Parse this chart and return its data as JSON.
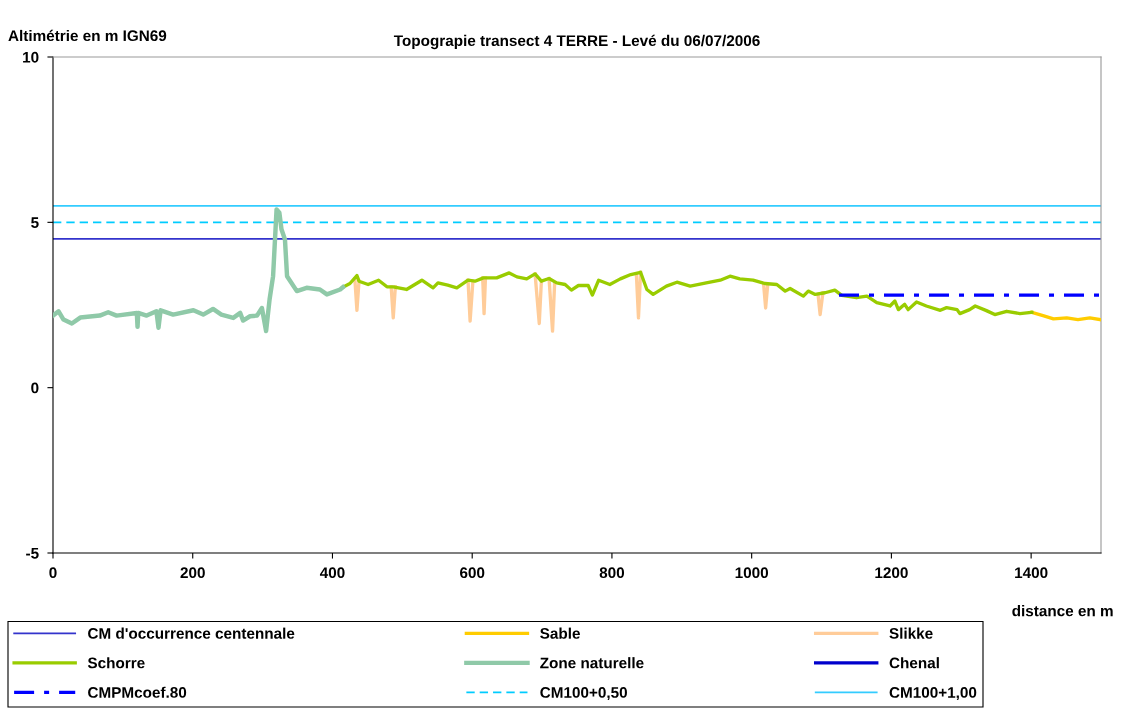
{
  "chart_data": {
    "type": "line",
    "title": "Topograpie transect 4 TERRE - Levé du 06/07/2006",
    "ylabel": "Altimétrie en m IGN69",
    "xlabel": "distance en m",
    "xlim": [
      0,
      1500
    ],
    "xticks": [
      0,
      200,
      400,
      600,
      800,
      1000,
      1200,
      1400
    ],
    "ylim": [
      -5,
      10
    ],
    "yticks": [
      -5,
      0,
      5,
      10
    ],
    "grid": false,
    "legend": "bottom",
    "series": [
      {
        "name": "Sable",
        "color": "#ffcc00",
        "x": [
          1401,
          1417,
          1432,
          1451,
          1467,
          1484,
          1498
        ],
        "values": [
          2.28,
          2.18,
          2.08,
          2.11,
          2.06,
          2.11,
          2.06
        ]
      },
      {
        "name": "Slikke",
        "color": "#ffcc99",
        "x": [
          432,
          435,
          438,
          null,
          484,
          487,
          490,
          null,
          594,
          597,
          601,
          null,
          615,
          617,
          619,
          null,
          690,
          696,
          699,
          null,
          710,
          715,
          718,
          null,
          835,
          838,
          841,
          null,
          1017,
          1020,
          1023,
          null,
          1095,
          1098,
          1102
        ],
        "values": [
          3.3,
          2.34,
          3.22,
          null,
          3.05,
          2.11,
          3.05,
          null,
          3.25,
          2.01,
          3.22,
          null,
          3.32,
          2.24,
          3.32,
          null,
          3.44,
          1.94,
          3.22,
          null,
          3.3,
          1.71,
          3.17,
          null,
          3.42,
          2.11,
          3.49,
          null,
          3.15,
          2.41,
          3.12,
          null,
          2.82,
          2.21,
          2.87
        ]
      },
      {
        "name": "Schorre",
        "color": "#99cc00",
        "x": [
          415,
          425,
          435,
          438,
          451,
          466,
          478,
          487,
          506,
          528,
          544,
          551,
          565,
          578,
          594,
          604,
          616,
          635,
          653,
          664,
          678,
          690,
          699,
          710,
          721,
          733,
          742,
          752,
          766,
          772,
          781,
          797,
          812,
          827,
          841,
          850,
          859,
          878,
          893,
          912,
          935,
          955,
          969,
          983,
          1002,
          1019,
          1036,
          1048,
          1055,
          1074,
          1081,
          1091,
          1105,
          1119,
          1129,
          1150,
          1165,
          1179,
          1198,
          1205,
          1210,
          1219,
          1224,
          1236,
          1250,
          1270,
          1279,
          1294,
          1298,
          1312,
          1320,
          1336,
          1348,
          1365,
          1384,
          1401
        ],
        "values": [
          3.04,
          3.15,
          3.39,
          3.22,
          3.12,
          3.25,
          3.05,
          3.05,
          2.97,
          3.25,
          3.02,
          3.17,
          3.1,
          3.02,
          3.25,
          3.22,
          3.32,
          3.32,
          3.47,
          3.35,
          3.29,
          3.44,
          3.22,
          3.3,
          3.17,
          3.12,
          2.95,
          3.09,
          3.09,
          2.8,
          3.25,
          3.12,
          3.29,
          3.42,
          3.49,
          2.97,
          2.82,
          3.07,
          3.19,
          3.07,
          3.17,
          3.25,
          3.37,
          3.29,
          3.25,
          3.15,
          3.12,
          2.92,
          3.0,
          2.77,
          2.92,
          2.82,
          2.87,
          2.95,
          2.79,
          2.72,
          2.77,
          2.57,
          2.47,
          2.62,
          2.36,
          2.52,
          2.36,
          2.59,
          2.47,
          2.34,
          2.42,
          2.36,
          2.24,
          2.36,
          2.47,
          2.33,
          2.21,
          2.31,
          2.24,
          2.28
        ]
      },
      {
        "name": "Zone naturelle",
        "color": "#8fc9a8",
        "x": [
          0,
          8,
          15,
          27,
          39,
          67,
          79,
          91,
          120,
          121,
          122,
          134,
          148,
          151,
          154,
          172,
          201,
          215,
          229,
          241,
          258,
          268,
          272,
          282,
          292,
          299,
          305,
          310,
          315,
          320,
          324,
          327,
          332,
          335,
          349,
          363,
          382,
          392,
          411,
          415
        ],
        "values": [
          2.18,
          2.31,
          2.06,
          1.94,
          2.12,
          2.18,
          2.28,
          2.18,
          2.26,
          1.84,
          2.26,
          2.18,
          2.31,
          1.81,
          2.34,
          2.21,
          2.34,
          2.21,
          2.38,
          2.21,
          2.11,
          2.26,
          2.03,
          2.16,
          2.18,
          2.41,
          1.71,
          2.67,
          3.37,
          5.39,
          5.29,
          4.79,
          4.48,
          3.37,
          2.92,
          3.02,
          2.97,
          2.82,
          2.97,
          3.04
        ]
      },
      {
        "name": "Chenal",
        "color": "#0000cc"
      },
      {
        "name": "CMPMcoef.80",
        "color": "#0000ff",
        "line_style": "dashdot",
        "x": [
          1125,
          1500
        ],
        "values": [
          2.8,
          2.8
        ]
      }
    ],
    "ref_lines": [
      {
        "axis": "y",
        "value": 4.5,
        "label": "CM d'occurrence centennale",
        "color": "#3333cc",
        "line_style": "solid"
      },
      {
        "axis": "y",
        "value": 5.0,
        "label": "CM100+0,50",
        "color": "#00ccff",
        "line_style": "dashed"
      },
      {
        "axis": "y",
        "value": 5.5,
        "label": "CM100+1,00",
        "color": "#33ccff",
        "line_style": "solid"
      }
    ]
  }
}
